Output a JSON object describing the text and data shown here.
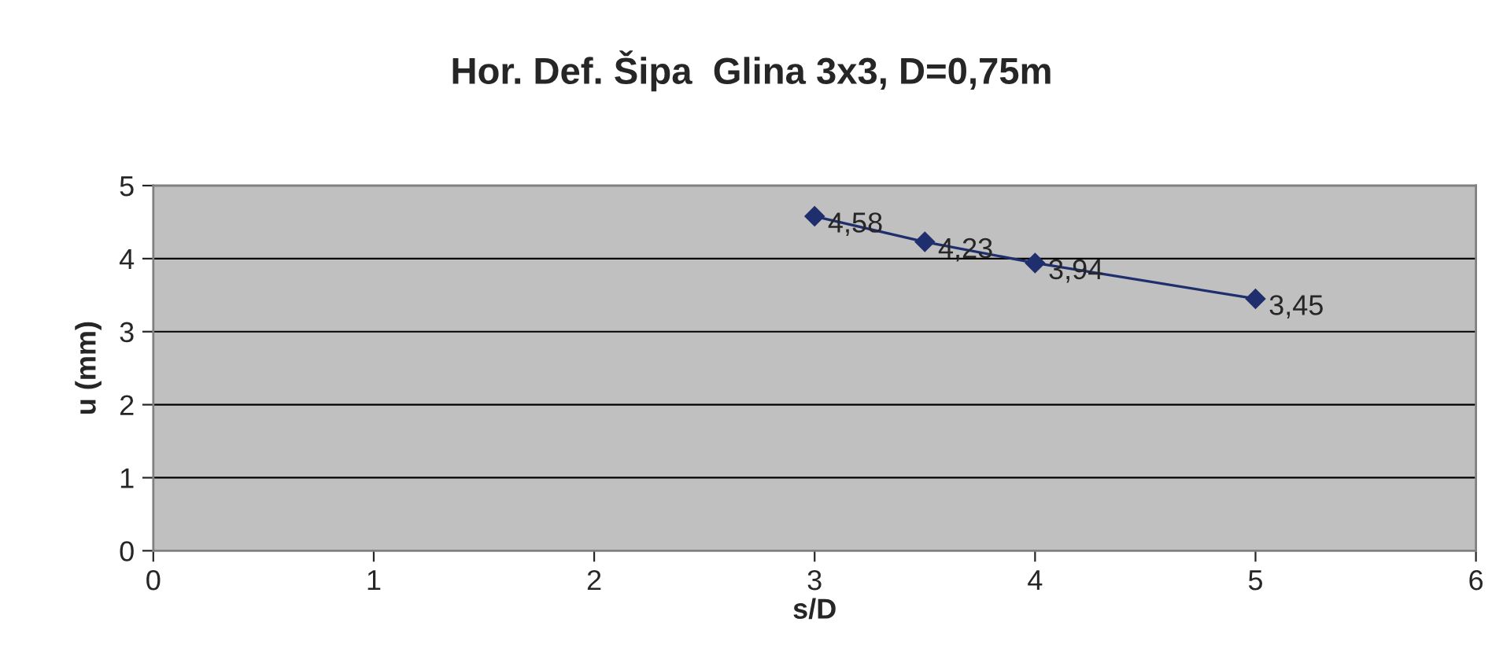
{
  "chart_data": {
    "type": "line",
    "title": "Hor. Def. Šipa  Glina 3x3, D=0,75m",
    "xlabel": "s/D",
    "ylabel": "u (mm)",
    "x": [
      3,
      3.5,
      4,
      5
    ],
    "series": [
      {
        "color": "#1f2f6e",
        "values": [
          4.58,
          4.23,
          3.94,
          3.45
        ],
        "value_labels": [
          "4,58",
          "4,23",
          "3,94",
          "3,45"
        ]
      }
    ],
    "xlim": [
      0,
      6
    ],
    "xticks": [
      0,
      1,
      2,
      3,
      4,
      5,
      6
    ],
    "ylim": [
      0,
      5
    ],
    "yticks": [
      0,
      1,
      2,
      3,
      4,
      5
    ],
    "grid": "y",
    "legend": false,
    "marker": "diamond",
    "line_style": "solid"
  }
}
